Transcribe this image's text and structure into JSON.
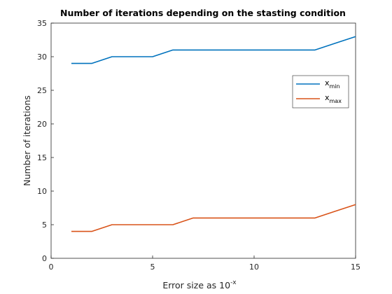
{
  "chart_data": {
    "type": "line",
    "title": "Number of iterations depending on the stasting condition",
    "xlabel": "Error size as 10",
    "xlabel_sup": "-x",
    "ylabel": "Number of iterations",
    "xlim": [
      0,
      15
    ],
    "ylim": [
      0,
      35
    ],
    "xticks": [
      0,
      5,
      10,
      15
    ],
    "yticks": [
      0,
      5,
      10,
      15,
      20,
      25,
      30,
      35
    ],
    "x": [
      1,
      2,
      3,
      4,
      5,
      6,
      7,
      8,
      9,
      10,
      11,
      12,
      13,
      14,
      15
    ],
    "series": [
      {
        "name": "x",
        "name_sub": "min",
        "color": "#0072BD",
        "values": [
          29,
          29,
          30,
          30,
          30,
          31,
          31,
          31,
          31,
          31,
          31,
          31,
          31,
          32,
          33
        ]
      },
      {
        "name": "x",
        "name_sub": "max",
        "color": "#D95319",
        "values": [
          4,
          4,
          5,
          5,
          5,
          5,
          6,
          6,
          6,
          6,
          6,
          6,
          6,
          7,
          8
        ]
      }
    ],
    "legend_position": "top-right",
    "grid": false
  }
}
